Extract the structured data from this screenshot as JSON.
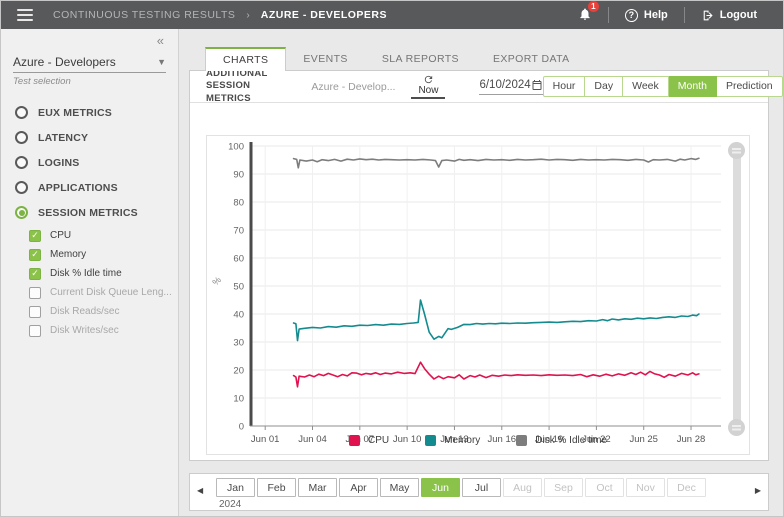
{
  "header": {
    "breadcrumb_root": "CONTINUOUS TESTING RESULTS",
    "breadcrumb_separator": "›",
    "breadcrumb_current": "AZURE - DEVELOPERS",
    "notification_count": "1",
    "help_label": "Help",
    "logout_label": "Logout"
  },
  "sidebar": {
    "collapse_icon": "«",
    "test_dropdown_value": "Azure - Developers",
    "test_dropdown_caption": "Test selection",
    "radio_items": [
      {
        "label": "EUX METRICS",
        "selected": false
      },
      {
        "label": "LATENCY",
        "selected": false
      },
      {
        "label": "LOGINS",
        "selected": false
      },
      {
        "label": "APPLICATIONS",
        "selected": false
      },
      {
        "label": "SESSION METRICS",
        "selected": true
      }
    ],
    "metric_checkboxes": [
      {
        "label": "CPU",
        "checked": true
      },
      {
        "label": "Memory",
        "checked": true
      },
      {
        "label": "Disk % Idle time",
        "checked": true
      },
      {
        "label": "Current Disk Queue Leng...",
        "checked": false
      },
      {
        "label": "Disk Reads/sec",
        "checked": false
      },
      {
        "label": "Disk Writes/sec",
        "checked": false
      }
    ]
  },
  "tabs": [
    {
      "label": "CHARTS",
      "active": true
    },
    {
      "label": "EVENTS",
      "active": false
    },
    {
      "label": "SLA REPORTS",
      "active": false
    },
    {
      "label": "EXPORT DATA",
      "active": false
    }
  ],
  "toolbar": {
    "title_line1": "ADDITIONAL SESSION",
    "title_line2": "METRICS",
    "scope_value": "Azure - Develop...",
    "refresh_label": "Now",
    "date_value": "6/10/2024",
    "range_buttons": [
      {
        "label": "Hour",
        "active": false
      },
      {
        "label": "Day",
        "active": false
      },
      {
        "label": "Week",
        "active": false
      },
      {
        "label": "Month",
        "active": true
      },
      {
        "label": "Prediction",
        "active": false
      }
    ]
  },
  "chart_data": {
    "type": "line",
    "title": "",
    "xlabel": "",
    "ylabel": "%",
    "ylim": [
      0,
      100
    ],
    "x_domain": [
      0.1,
      29.9
    ],
    "grid": true,
    "legend_position": "bottom",
    "y_ticks": [
      0,
      10,
      20,
      30,
      40,
      50,
      60,
      70,
      80,
      90,
      100
    ],
    "x_ticks": [
      {
        "day": 1,
        "label": "Jun 01"
      },
      {
        "day": 4,
        "label": "Jun 04"
      },
      {
        "day": 7,
        "label": "Jun 07"
      },
      {
        "day": 10,
        "label": "Jun 10"
      },
      {
        "day": 13,
        "label": "Jun 13"
      },
      {
        "day": 16,
        "label": "Jun 16"
      },
      {
        "day": 19,
        "label": "Jun 19"
      },
      {
        "day": 22,
        "label": "Jun 22"
      },
      {
        "day": 25,
        "label": "Jun 25"
      },
      {
        "day": 28,
        "label": "Jun 28"
      }
    ],
    "series": [
      {
        "name": "CPU",
        "color": "#e0134f",
        "points": [
          [
            2.8,
            18.0
          ],
          [
            2.95,
            17.5
          ],
          [
            3.05,
            14.0
          ],
          [
            3.15,
            17.8
          ],
          [
            3.5,
            17.5
          ],
          [
            3.8,
            18.2
          ],
          [
            4.1,
            17.6
          ],
          [
            4.4,
            18.5
          ],
          [
            4.7,
            18.0
          ],
          [
            5.0,
            18.8
          ],
          [
            5.3,
            18.2
          ],
          [
            5.6,
            17.6
          ],
          [
            5.9,
            18.4
          ],
          [
            6.2,
            17.9
          ],
          [
            6.5,
            19.0
          ],
          [
            6.8,
            18.9
          ],
          [
            7.1,
            18.3
          ],
          [
            7.4,
            18.8
          ],
          [
            7.7,
            18.5
          ],
          [
            8.0,
            19.0
          ],
          [
            8.3,
            18.4
          ],
          [
            8.6,
            18.9
          ],
          [
            9.0,
            18.6
          ],
          [
            9.4,
            19.2
          ],
          [
            9.8,
            18.8
          ],
          [
            10.2,
            19.0
          ],
          [
            10.5,
            18.7
          ],
          [
            10.85,
            22.8
          ],
          [
            11.1,
            20.5
          ],
          [
            11.4,
            18.5
          ],
          [
            11.7,
            16.8
          ],
          [
            12.0,
            17.8
          ],
          [
            12.3,
            16.9
          ],
          [
            12.6,
            17.6
          ],
          [
            13.0,
            17.2
          ],
          [
            13.3,
            18.3
          ],
          [
            13.6,
            16.8
          ],
          [
            14.0,
            18.0
          ],
          [
            14.3,
            17.5
          ],
          [
            14.6,
            18.2
          ],
          [
            15.0,
            17.3
          ],
          [
            15.4,
            18.1
          ],
          [
            15.8,
            17.8
          ],
          [
            16.2,
            18.2
          ],
          [
            16.6,
            18.0
          ],
          [
            17.0,
            18.3
          ],
          [
            17.5,
            18.1
          ],
          [
            18.0,
            18.2
          ],
          [
            18.5,
            18.0
          ],
          [
            19.0,
            18.3
          ],
          [
            19.5,
            18.1
          ],
          [
            20.0,
            18.2
          ],
          [
            20.5,
            18.0
          ],
          [
            21.0,
            18.4
          ],
          [
            21.4,
            17.6
          ],
          [
            21.8,
            18.3
          ],
          [
            22.2,
            17.8
          ],
          [
            22.6,
            18.5
          ],
          [
            23.0,
            17.9
          ],
          [
            23.4,
            18.6
          ],
          [
            23.8,
            18.1
          ],
          [
            24.2,
            19.0
          ],
          [
            24.5,
            18.4
          ],
          [
            24.8,
            19.2
          ],
          [
            25.1,
            18.3
          ],
          [
            25.4,
            19.5
          ],
          [
            25.7,
            18.6
          ],
          [
            26.0,
            18.2
          ],
          [
            26.3,
            17.4
          ],
          [
            26.6,
            18.4
          ],
          [
            27.0,
            17.8
          ],
          [
            27.4,
            18.8
          ],
          [
            27.8,
            18.2
          ],
          [
            28.1,
            19.0
          ],
          [
            28.3,
            18.3
          ],
          [
            28.5,
            18.6
          ]
        ]
      },
      {
        "name": "Memory",
        "color": "#148b8f",
        "points": [
          [
            2.8,
            36.8
          ],
          [
            2.95,
            36.5
          ],
          [
            3.05,
            30.5
          ],
          [
            3.15,
            34.6
          ],
          [
            3.5,
            34.9
          ],
          [
            4.0,
            35.2
          ],
          [
            4.5,
            35.0
          ],
          [
            5.0,
            35.5
          ],
          [
            5.5,
            35.3
          ],
          [
            6.0,
            35.8
          ],
          [
            6.5,
            35.6
          ],
          [
            7.0,
            36.0
          ],
          [
            7.5,
            35.9
          ],
          [
            8.0,
            36.2
          ],
          [
            8.5,
            36.0
          ],
          [
            9.0,
            36.4
          ],
          [
            9.5,
            36.3
          ],
          [
            10.0,
            36.6
          ],
          [
            10.4,
            36.8
          ],
          [
            10.7,
            37.0
          ],
          [
            10.85,
            45.0
          ],
          [
            11.1,
            40.0
          ],
          [
            11.4,
            33.5
          ],
          [
            11.7,
            31.0
          ],
          [
            12.0,
            32.0
          ],
          [
            12.2,
            31.5
          ],
          [
            12.6,
            34.8
          ],
          [
            12.8,
            34.5
          ],
          [
            13.2,
            35.2
          ],
          [
            13.6,
            36.3
          ],
          [
            14.0,
            36.2
          ],
          [
            14.4,
            36.6
          ],
          [
            14.8,
            36.4
          ],
          [
            15.2,
            36.6
          ],
          [
            15.6,
            36.5
          ],
          [
            16.0,
            36.7
          ],
          [
            16.5,
            36.6
          ],
          [
            17.0,
            36.8
          ],
          [
            17.5,
            36.7
          ],
          [
            18.0,
            36.9
          ],
          [
            18.5,
            37.0
          ],
          [
            19.0,
            37.1
          ],
          [
            19.5,
            37.0
          ],
          [
            20.0,
            37.2
          ],
          [
            20.5,
            37.4
          ],
          [
            21.0,
            37.3
          ],
          [
            21.5,
            37.6
          ],
          [
            22.0,
            37.5
          ],
          [
            22.4,
            38.0
          ],
          [
            22.7,
            37.6
          ],
          [
            23.0,
            38.2
          ],
          [
            23.4,
            37.9
          ],
          [
            23.8,
            38.3
          ],
          [
            24.2,
            38.1
          ],
          [
            24.6,
            38.5
          ],
          [
            25.0,
            38.3
          ],
          [
            25.4,
            38.6
          ],
          [
            25.8,
            38.4
          ],
          [
            26.2,
            38.8
          ],
          [
            26.6,
            39.0
          ],
          [
            27.0,
            38.8
          ],
          [
            27.4,
            39.3
          ],
          [
            27.8,
            39.1
          ],
          [
            28.1,
            39.6
          ],
          [
            28.35,
            39.4
          ],
          [
            28.5,
            40.0
          ]
        ]
      },
      {
        "name": "Disk % Idle time",
        "color": "#7d7d7d",
        "points": [
          [
            2.8,
            95.5
          ],
          [
            3.0,
            95.2
          ],
          [
            3.1,
            92.2
          ],
          [
            3.2,
            95.0
          ],
          [
            3.6,
            94.6
          ],
          [
            4.0,
            95.0
          ],
          [
            4.3,
            94.4
          ],
          [
            4.6,
            95.1
          ],
          [
            5.0,
            94.8
          ],
          [
            5.4,
            95.2
          ],
          [
            5.8,
            94.6
          ],
          [
            6.2,
            95.3
          ],
          [
            6.6,
            95.0
          ],
          [
            7.0,
            95.4
          ],
          [
            7.4,
            95.1
          ],
          [
            7.8,
            95.3
          ],
          [
            8.2,
            95.0
          ],
          [
            8.6,
            95.2
          ],
          [
            9.0,
            95.1
          ],
          [
            9.5,
            95.0
          ],
          [
            10.0,
            95.1
          ],
          [
            10.5,
            95.0
          ],
          [
            11.0,
            95.2
          ],
          [
            11.5,
            95.0
          ],
          [
            11.8,
            94.8
          ],
          [
            12.0,
            92.5
          ],
          [
            12.2,
            94.8
          ],
          [
            12.5,
            95.0
          ],
          [
            13.0,
            94.6
          ],
          [
            13.3,
            95.2
          ],
          [
            13.6,
            94.9
          ],
          [
            14.0,
            95.1
          ],
          [
            14.5,
            94.8
          ],
          [
            15.0,
            95.2
          ],
          [
            15.5,
            95.0
          ],
          [
            16.0,
            95.1
          ],
          [
            16.5,
            94.9
          ],
          [
            17.0,
            95.2
          ],
          [
            17.5,
            95.0
          ],
          [
            18.0,
            95.1
          ],
          [
            18.5,
            95.3
          ],
          [
            19.0,
            95.0
          ],
          [
            19.5,
            95.2
          ],
          [
            20.0,
            95.1
          ],
          [
            20.5,
            94.9
          ],
          [
            21.0,
            95.2
          ],
          [
            21.5,
            95.0
          ],
          [
            22.0,
            95.1
          ],
          [
            22.5,
            95.0
          ],
          [
            23.0,
            95.2
          ],
          [
            23.5,
            95.1
          ],
          [
            24.0,
            94.9
          ],
          [
            24.5,
            95.2
          ],
          [
            25.0,
            95.0
          ],
          [
            25.3,
            94.3
          ],
          [
            25.6,
            95.1
          ],
          [
            26.0,
            95.0
          ],
          [
            26.5,
            95.2
          ],
          [
            27.0,
            94.6
          ],
          [
            27.3,
            95.3
          ],
          [
            27.6,
            95.0
          ],
          [
            28.0,
            95.5
          ],
          [
            28.3,
            95.2
          ],
          [
            28.5,
            95.6
          ]
        ]
      }
    ]
  },
  "month_bar": {
    "prev_icon": "◀",
    "next_icon": "▶",
    "year": "2024",
    "months": [
      {
        "label": "Jan",
        "state": "normal"
      },
      {
        "label": "Feb",
        "state": "normal"
      },
      {
        "label": "Mar",
        "state": "normal"
      },
      {
        "label": "Apr",
        "state": "normal"
      },
      {
        "label": "May",
        "state": "normal"
      },
      {
        "label": "Jun",
        "state": "active"
      },
      {
        "label": "Jul",
        "state": "normal"
      },
      {
        "label": "Aug",
        "state": "disabled"
      },
      {
        "label": "Sep",
        "state": "disabled"
      },
      {
        "label": "Oct",
        "state": "disabled"
      },
      {
        "label": "Nov",
        "state": "disabled"
      },
      {
        "label": "Dec",
        "state": "disabled"
      }
    ]
  },
  "colors": {
    "accent_green": "#8bc34a",
    "header_bg": "#58595b",
    "badge_red": "#e8403a",
    "cpu_line": "#e0134f",
    "memory_line": "#148b8f",
    "disk_line": "#7d7d7d"
  }
}
